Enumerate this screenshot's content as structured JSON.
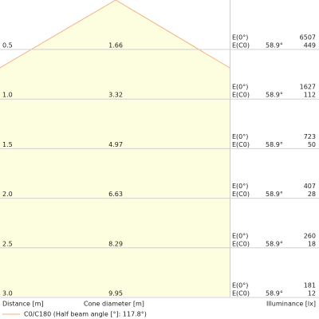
{
  "rows": [
    {
      "distance": "0.5",
      "diameter": "1.66",
      "e0_label": "E(0°)",
      "ec0_label": "E(C0)",
      "angle": "58.9°",
      "e0": "6507",
      "ec0": "449"
    },
    {
      "distance": "1.0",
      "diameter": "3.32",
      "e0_label": "E(0°)",
      "ec0_label": "E(C0)",
      "angle": "58.9°",
      "e0": "1627",
      "ec0": "112"
    },
    {
      "distance": "1.5",
      "diameter": "4.97",
      "e0_label": "E(0°)",
      "ec0_label": "E(C0)",
      "angle": "58.9°",
      "e0": "723",
      "ec0": "50"
    },
    {
      "distance": "2.0",
      "diameter": "6.63",
      "e0_label": "E(0°)",
      "ec0_label": "E(C0)",
      "angle": "58.9°",
      "e0": "407",
      "ec0": "28"
    },
    {
      "distance": "2.5",
      "diameter": "8.29",
      "e0_label": "E(0°)",
      "ec0_label": "E(C0)",
      "angle": "58.9°",
      "e0": "260",
      "ec0": "18"
    },
    {
      "distance": "3.0",
      "diameter": "9.95",
      "e0_label": "E(0°)",
      "ec0_label": "E(C0)",
      "angle": "58.9°",
      "e0": "181",
      "ec0": "12"
    }
  ],
  "footer": {
    "distance": "Distance [m]",
    "diameter": "Cone diameter [m]",
    "illuminance": "Illuminance [lx]"
  },
  "legend": {
    "label": "C0/C180 (Half beam angle [°]: 117.8°)"
  }
}
